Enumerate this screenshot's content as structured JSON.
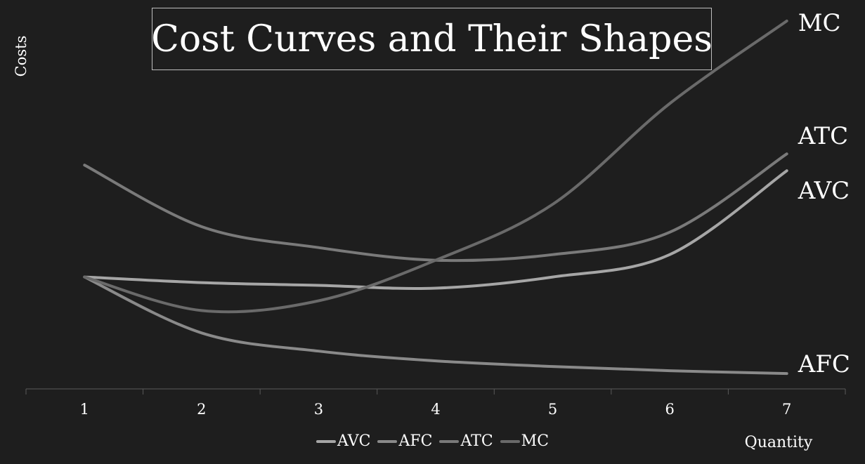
{
  "chart_data": {
    "type": "line",
    "title": "Cost Curves and Their Shapes",
    "xlabel": "Quantity",
    "ylabel": "Costs",
    "categories": [
      "1",
      "2",
      "3",
      "4",
      "5",
      "6",
      "7"
    ],
    "x": [
      1,
      2,
      3,
      4,
      5,
      6,
      7
    ],
    "ylim": [
      0,
      27
    ],
    "grid": false,
    "legend": "bottom",
    "series": [
      {
        "name": "AVC",
        "color": "#a6a6a6",
        "values": [
          8,
          7.6,
          7.4,
          7.2,
          8,
          9.6,
          15.6
        ]
      },
      {
        "name": "AFC",
        "color": "#8a8a8a",
        "values": [
          8,
          4,
          2.7,
          2,
          1.6,
          1.3,
          1.1
        ]
      },
      {
        "name": "ATC",
        "color": "#7a7a7a",
        "values": [
          16,
          11.6,
          10.1,
          9.2,
          9.6,
          11.2,
          16.8
        ]
      },
      {
        "name": "MC",
        "color": "#6a6a6a",
        "values": [
          8,
          5.6,
          6.3,
          9.2,
          13.2,
          20.4,
          26.3
        ]
      }
    ]
  }
}
